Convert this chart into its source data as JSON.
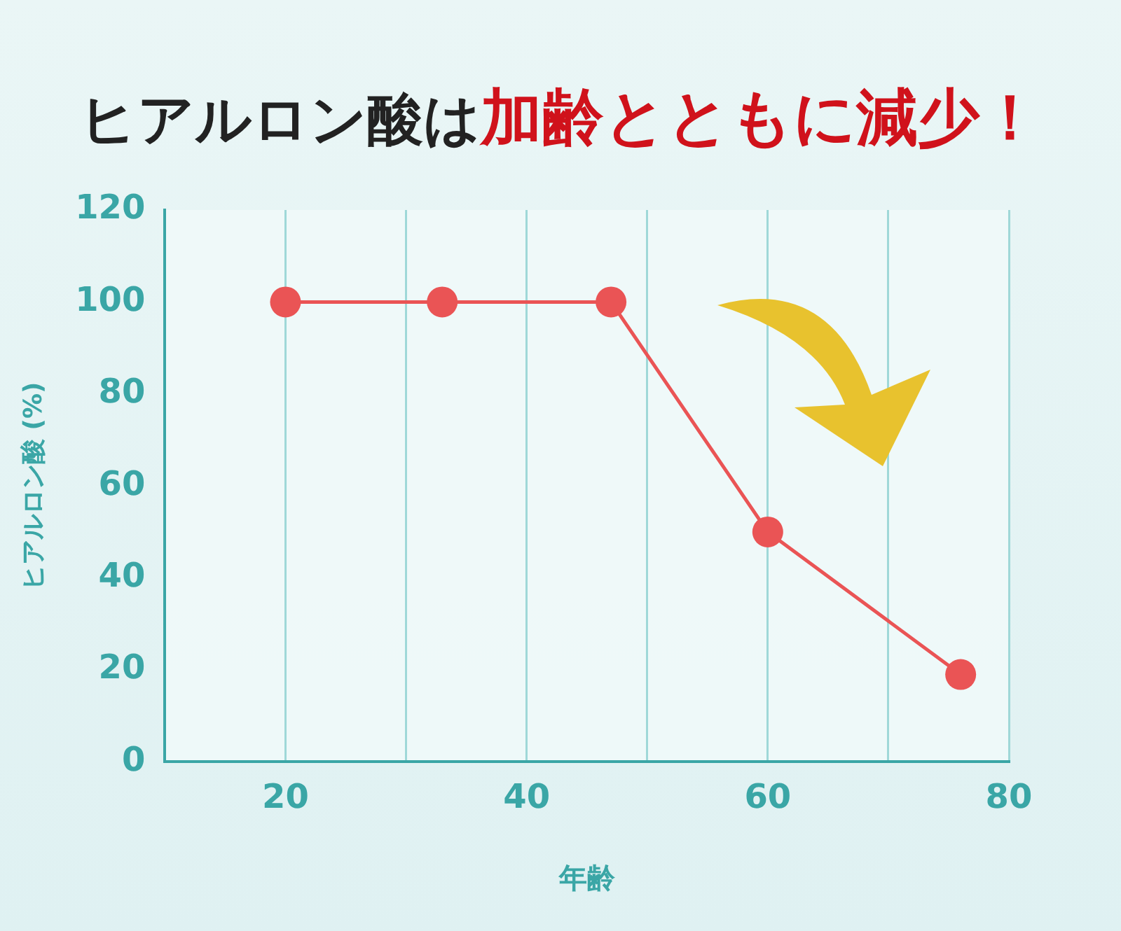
{
  "chart_data": {
    "type": "line",
    "title": "ヒアルロン酸は",
    "subtitle": "加齢とともに減少！",
    "xlabel": "年齢",
    "ylabel": "ヒアルロン酸 (%)",
    "x": [
      20,
      33,
      47,
      60,
      76
    ],
    "series": [
      {
        "color": "#ea5455",
        "values": [
          100,
          100,
          100,
          50,
          19
        ]
      }
    ],
    "xlim": [
      10,
      80
    ],
    "xticks": [
      20,
      {
        "value": 30,
        "label": null
      },
      40,
      {
        "value": 50,
        "label": null
      },
      60,
      {
        "value": 70,
        "label": null
      },
      80
    ],
    "ylim": [
      0,
      120
    ],
    "yticks": [
      0,
      20,
      40,
      60,
      80,
      100,
      120
    ],
    "grid": "x",
    "legend": false,
    "marker": "circle",
    "line_style": "solid"
  }
}
